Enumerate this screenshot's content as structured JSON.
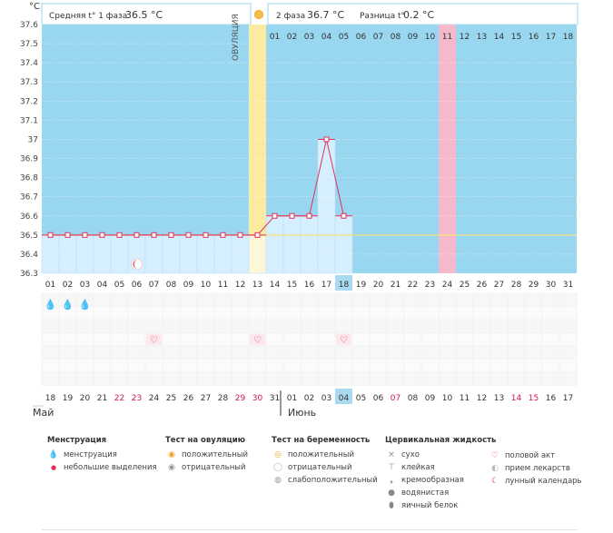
{
  "chart_data": {
    "type": "line",
    "title": "",
    "ylabel": "°C",
    "ylim": [
      36.3,
      37.6
    ],
    "yticks": [
      "37.6",
      "37.5",
      "37.4",
      "37.3",
      "37.2",
      "37.1",
      "37",
      "36.9",
      "36.8",
      "36.7",
      "36.6",
      "36.5",
      "36.4",
      "36.3"
    ],
    "cycle_days": [
      "01",
      "02",
      "03",
      "04",
      "05",
      "06",
      "07",
      "08",
      "09",
      "10",
      "11",
      "12",
      "13",
      "14",
      "15",
      "16",
      "17",
      "18",
      "19",
      "20",
      "21",
      "22",
      "23",
      "24",
      "25",
      "26",
      "27",
      "28",
      "29",
      "30",
      "31"
    ],
    "temperature_x": [
      1,
      2,
      3,
      4,
      5,
      6,
      7,
      8,
      9,
      10,
      11,
      12,
      13,
      14,
      15,
      16,
      17,
      18
    ],
    "temperatures": [
      36.5,
      36.5,
      36.5,
      36.5,
      36.5,
      36.5,
      36.5,
      36.5,
      36.5,
      36.5,
      36.5,
      36.5,
      36.5,
      36.6,
      36.6,
      36.6,
      37.0,
      36.6
    ],
    "phase1_avg_label": "Средняя t° 1 фаза",
    "phase1_avg_value": "36.5 °C",
    "phase2_label": "2 фаза",
    "phase2_value": "36.7 °C",
    "diff_label": "Разница t°",
    "diff_value": "0.2 °C",
    "ovulation_day": 13,
    "ovulation_label": "ОВУЛЯЦИЯ",
    "coverline": 36.5,
    "phase2_days": [
      "01",
      "02",
      "03",
      "04",
      "05",
      "06",
      "07",
      "08",
      "09",
      "10",
      "11",
      "12",
      "13",
      "14",
      "15",
      "16",
      "17",
      "18"
    ],
    "expected_period_index": 10,
    "today_day": 18,
    "moon_day": 6,
    "menstruation_days": [
      1,
      2,
      3
    ],
    "sex_days": [
      7,
      13,
      18
    ],
    "dates": [
      "18",
      "19",
      "20",
      "21",
      "22",
      "23",
      "24",
      "25",
      "26",
      "27",
      "28",
      "29",
      "30",
      "31",
      "01",
      "02",
      "03",
      "04",
      "05",
      "06",
      "07",
      "08",
      "09",
      "10",
      "11",
      "12",
      "13",
      "14",
      "15",
      "16",
      "17"
    ],
    "red_dates": [
      4,
      5,
      11,
      12,
      20,
      27,
      28
    ],
    "month_1": "Май",
    "month_2": "Июнь",
    "colors": {
      "sky": "#99d6f0",
      "bar": "#d6efff",
      "line": "#e0305a",
      "ovulation": "#fbeaa0",
      "pink": "#f6b9cc",
      "today": "#a9daf1"
    }
  },
  "legend": {
    "menstruation": {
      "title": "Менструация",
      "items": [
        "менструация",
        "небольшие выделения"
      ]
    },
    "ovulation_test": {
      "title": "Тест на овуляцию",
      "items": [
        "положительный",
        "отрицательный"
      ]
    },
    "pregnancy_test": {
      "title": "Тест на беременность",
      "items": [
        "положительный",
        "отрицательный",
        "слабоположительный"
      ]
    },
    "cervical": {
      "title": "Цервикальная жидкость",
      "items": [
        "сухо",
        "клейкая",
        "кремообразная",
        "водянистая",
        "яичный белок"
      ]
    },
    "other": {
      "items": [
        "половой акт",
        "прием лекарств",
        "лунный календарь"
      ]
    }
  }
}
